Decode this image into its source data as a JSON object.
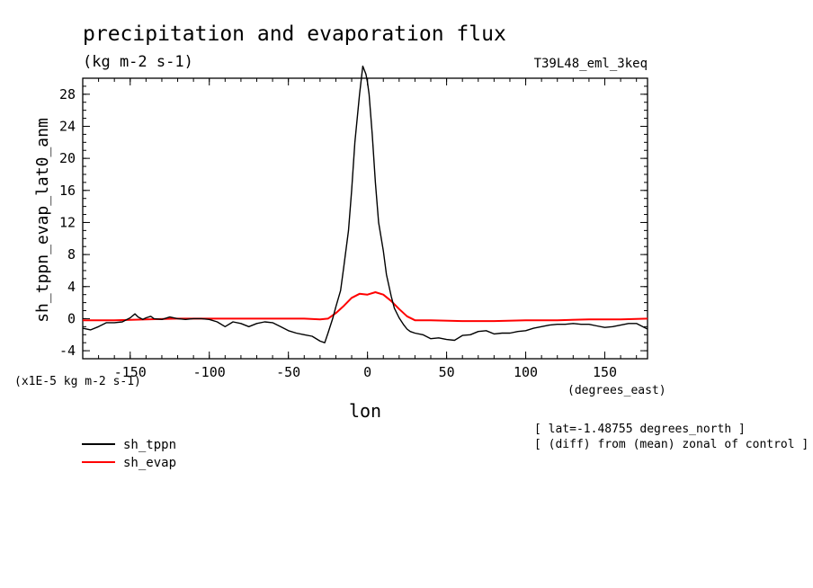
{
  "chart_data": {
    "type": "line",
    "title": "precipitation and evaporation flux",
    "subtitle": "(kg m-2 s-1)",
    "run_label": "T39L48_eml_3keq",
    "xlabel": "lon",
    "x_units": "(degrees_east)",
    "ylabel": "sh_tppn_evap_lat0_anm",
    "y_units": "(x1E-5 kg m-2 s-1)",
    "xlim": [
      -180,
      177
    ],
    "ylim": [
      -5,
      30
    ],
    "x_ticks": [
      -150,
      -100,
      -50,
      0,
      50,
      100,
      150
    ],
    "x_tick_labels": [
      "-150",
      "-100",
      "-50",
      "0",
      "50",
      "100",
      "150"
    ],
    "y_ticks": [
      -4,
      0,
      4,
      8,
      12,
      16,
      20,
      24,
      28
    ],
    "y_tick_labels": [
      "-4",
      "0",
      "4",
      "8",
      "12",
      "16",
      "20",
      "24",
      "28"
    ],
    "annotations": [
      "[ lat=-1.48755 degrees_north ]",
      "[ (diff) from (mean) zonal of control ]"
    ],
    "legend_position": "bottom-left",
    "series": [
      {
        "name": "sh_tppn",
        "color": "#000000",
        "x": [
          -180,
          -175,
          -170,
          -165,
          -160,
          -155,
          -150,
          -147,
          -145,
          -142,
          -140,
          -137,
          -135,
          -130,
          -125,
          -120,
          -115,
          -110,
          -105,
          -100,
          -95,
          -90,
          -85,
          -80,
          -75,
          -70,
          -65,
          -60,
          -55,
          -50,
          -45,
          -40,
          -35,
          -30,
          -27,
          -25,
          -22,
          -20,
          -17,
          -15,
          -12,
          -10,
          -8,
          -5,
          -3,
          -1,
          0,
          1,
          3,
          5,
          7,
          10,
          12,
          15,
          17,
          20,
          23,
          25,
          27,
          30,
          35,
          40,
          45,
          50,
          55,
          60,
          65,
          70,
          75,
          80,
          85,
          90,
          95,
          100,
          105,
          110,
          115,
          120,
          125,
          130,
          135,
          140,
          145,
          150,
          155,
          160,
          165,
          170,
          175,
          177
        ],
        "y": [
          -1.2,
          -1.4,
          -1.0,
          -0.5,
          -0.5,
          -0.4,
          0.1,
          0.6,
          0.2,
          -0.1,
          0.1,
          0.3,
          0.0,
          -0.1,
          0.2,
          0.0,
          -0.1,
          0.0,
          0.0,
          -0.1,
          -0.4,
          -1.0,
          -0.4,
          -0.6,
          -1.0,
          -0.6,
          -0.4,
          -0.5,
          -1.0,
          -1.5,
          -1.8,
          -2.0,
          -2.2,
          -2.8,
          -3.0,
          -1.8,
          0.0,
          1.5,
          3.5,
          6.5,
          11.0,
          16.0,
          22.0,
          28.0,
          31.5,
          30.5,
          29.5,
          28.0,
          23.0,
          17.0,
          12.0,
          8.5,
          5.5,
          2.8,
          1.3,
          0.1,
          -0.8,
          -1.3,
          -1.6,
          -1.8,
          -2.0,
          -2.5,
          -2.4,
          -2.6,
          -2.7,
          -2.1,
          -2.0,
          -1.6,
          -1.5,
          -1.9,
          -1.8,
          -1.8,
          -1.6,
          -1.5,
          -1.2,
          -1.0,
          -0.8,
          -0.7,
          -0.7,
          -0.6,
          -0.7,
          -0.7,
          -0.9,
          -1.1,
          -1.0,
          -0.8,
          -0.6,
          -0.6,
          -1.1,
          -1.3
        ]
      },
      {
        "name": "sh_evap",
        "color": "#ff0000",
        "x": [
          -180,
          -160,
          -140,
          -120,
          -100,
          -80,
          -60,
          -40,
          -30,
          -25,
          -20,
          -15,
          -10,
          -5,
          0,
          5,
          10,
          15,
          20,
          25,
          30,
          40,
          60,
          80,
          100,
          120,
          140,
          160,
          177
        ],
        "y": [
          -0.2,
          -0.2,
          -0.1,
          0.0,
          0.0,
          0.0,
          0.0,
          0.0,
          -0.1,
          0.0,
          0.7,
          1.6,
          2.6,
          3.1,
          3.0,
          3.3,
          3.0,
          2.2,
          1.2,
          0.3,
          -0.2,
          -0.2,
          -0.3,
          -0.3,
          -0.2,
          -0.2,
          -0.1,
          -0.1,
          0.0
        ]
      }
    ]
  }
}
